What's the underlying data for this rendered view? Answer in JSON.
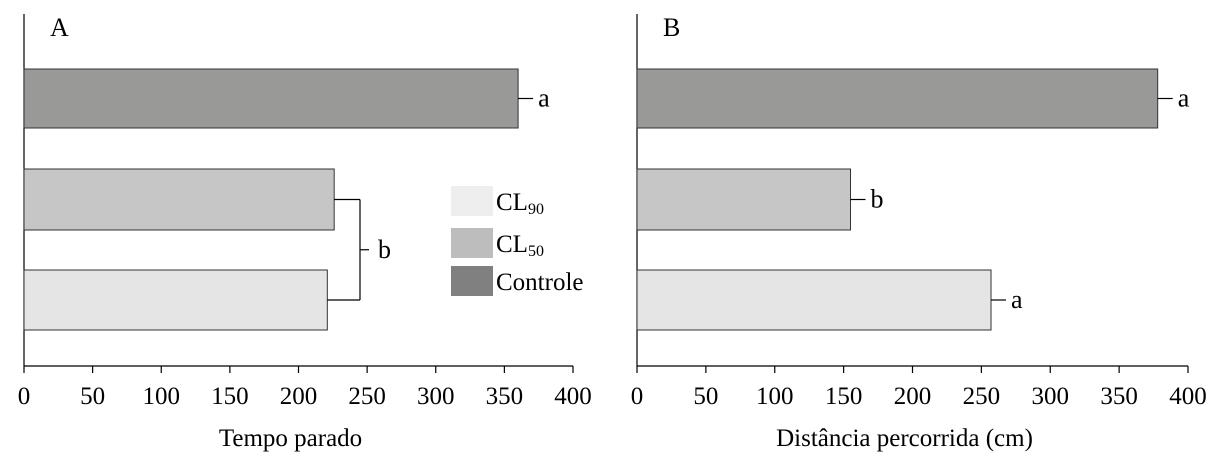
{
  "chart_data": [
    {
      "type": "bar",
      "orientation": "horizontal",
      "panel_label": "A",
      "xlabel": "Tempo parado",
      "xlim": [
        0,
        400
      ],
      "xticks": [
        "0",
        "50",
        "100",
        "150",
        "200",
        "250",
        "300",
        "350",
        "400"
      ],
      "bars": [
        {
          "group": "Controle",
          "value": 360,
          "color": "#999a98"
        },
        {
          "group": "CL50",
          "value": 226,
          "color": "#c6c6c6"
        },
        {
          "group": "CL90",
          "value": 221,
          "color": "#e5e5e5"
        }
      ],
      "annotations": [
        {
          "label": "a",
          "bars": [
            "Controle"
          ]
        },
        {
          "label": "b",
          "bars": [
            "CL50",
            "CL90"
          ],
          "bracket": true
        }
      ]
    },
    {
      "type": "bar",
      "orientation": "horizontal",
      "panel_label": "B",
      "xlabel": "Distância percorrida (cm)",
      "xlim": [
        0,
        400
      ],
      "xticks": [
        "0",
        "50",
        "100",
        "150",
        "200",
        "250",
        "300",
        "350",
        "400"
      ],
      "bars": [
        {
          "group": "Controle",
          "value": 378,
          "color": "#999a98"
        },
        {
          "group": "CL50",
          "value": 155,
          "color": "#c6c6c6"
        },
        {
          "group": "CL90",
          "value": 257,
          "color": "#e5e5e5"
        }
      ],
      "annotations": [
        {
          "label": "a",
          "bars": [
            "Controle"
          ]
        },
        {
          "label": "b",
          "bars": [
            "CL50"
          ]
        },
        {
          "label": "a",
          "bars": [
            "CL90"
          ]
        }
      ]
    }
  ],
  "legend": {
    "position": "between-panels",
    "items": [
      {
        "base": "CL",
        "sub": "90",
        "color": "#eeeeee"
      },
      {
        "base": "CL",
        "sub": "50",
        "color": "#bdbdbd"
      },
      {
        "base": "Controle",
        "sub": "",
        "color": "#808080"
      }
    ]
  }
}
